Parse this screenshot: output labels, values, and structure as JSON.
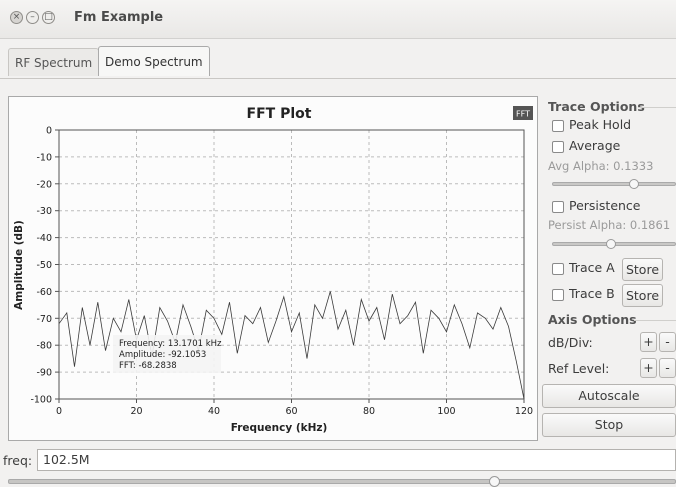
{
  "window": {
    "title": "Fm Example"
  },
  "tabs": [
    {
      "label": "RF Spectrum"
    },
    {
      "label": "Demo Spectrum"
    }
  ],
  "plot": {
    "badge": "FFT",
    "tooltip": {
      "frequency": "Frequency: 13.1701 kHz",
      "amplitude": "Amplitude: -92.1053",
      "fft": "FFT: -68.2838"
    }
  },
  "trace_options": {
    "title": "Trace Options",
    "peak_hold": "Peak Hold",
    "average": "Average",
    "avg_alpha": "Avg Alpha: 0.1333",
    "avg_alpha_value": 0.1333,
    "persistence": "Persistence",
    "persist_alpha": "Persist Alpha: 0.1861",
    "persist_alpha_value": 0.1861,
    "trace_a": "Trace A",
    "trace_b": "Trace B",
    "store": "Store"
  },
  "axis_options": {
    "title": "Axis Options",
    "db_div": "dB/Div:",
    "ref_level": "Ref Level:",
    "plus": "+",
    "minus": "-",
    "autoscale": "Autoscale"
  },
  "stop_label": "Stop",
  "freq": {
    "label": "freq:",
    "value": "102.5M"
  },
  "chart_data": {
    "type": "line",
    "title": "FFT Plot",
    "xlabel": "Frequency (kHz)",
    "ylabel": "Amplitude (dB)",
    "xlim": [
      0,
      120
    ],
    "ylim": [
      -100,
      0
    ],
    "xticks": [
      0,
      20,
      40,
      60,
      80,
      100,
      120
    ],
    "yticks": [
      0,
      -10,
      -20,
      -30,
      -40,
      -50,
      -60,
      -70,
      -80,
      -90,
      -100
    ],
    "grid": true,
    "series": [
      {
        "x": [
          0,
          2,
          4,
          6,
          8,
          10,
          12,
          14,
          16,
          18,
          20,
          22,
          24,
          26,
          28,
          30,
          32,
          34,
          36,
          38,
          40,
          42,
          44,
          46,
          48,
          50,
          52,
          54,
          56,
          58,
          60,
          62,
          64,
          66,
          68,
          70,
          72,
          74,
          76,
          78,
          80,
          82,
          84,
          86,
          88,
          90,
          92,
          94,
          96,
          98,
          100,
          102,
          104,
          106,
          108,
          110,
          112,
          114,
          116,
          118,
          120
        ],
        "y": [
          -72,
          -68,
          -88,
          -66,
          -80,
          -64,
          -82,
          -70,
          -75,
          -63,
          -78,
          -69,
          -84,
          -66,
          -71,
          -79,
          -65,
          -73,
          -82,
          -67,
          -70,
          -76,
          -64,
          -83,
          -69,
          -72,
          -66,
          -79,
          -71,
          -62,
          -75,
          -68,
          -85,
          -65,
          -70,
          -60,
          -74,
          -67,
          -80,
          -63,
          -71,
          -66,
          -78,
          -61,
          -72,
          -69,
          -64,
          -83,
          -67,
          -70,
          -75,
          -65,
          -72,
          -81,
          -68,
          -70,
          -74,
          -66,
          -73,
          -86,
          -100
        ]
      }
    ]
  }
}
